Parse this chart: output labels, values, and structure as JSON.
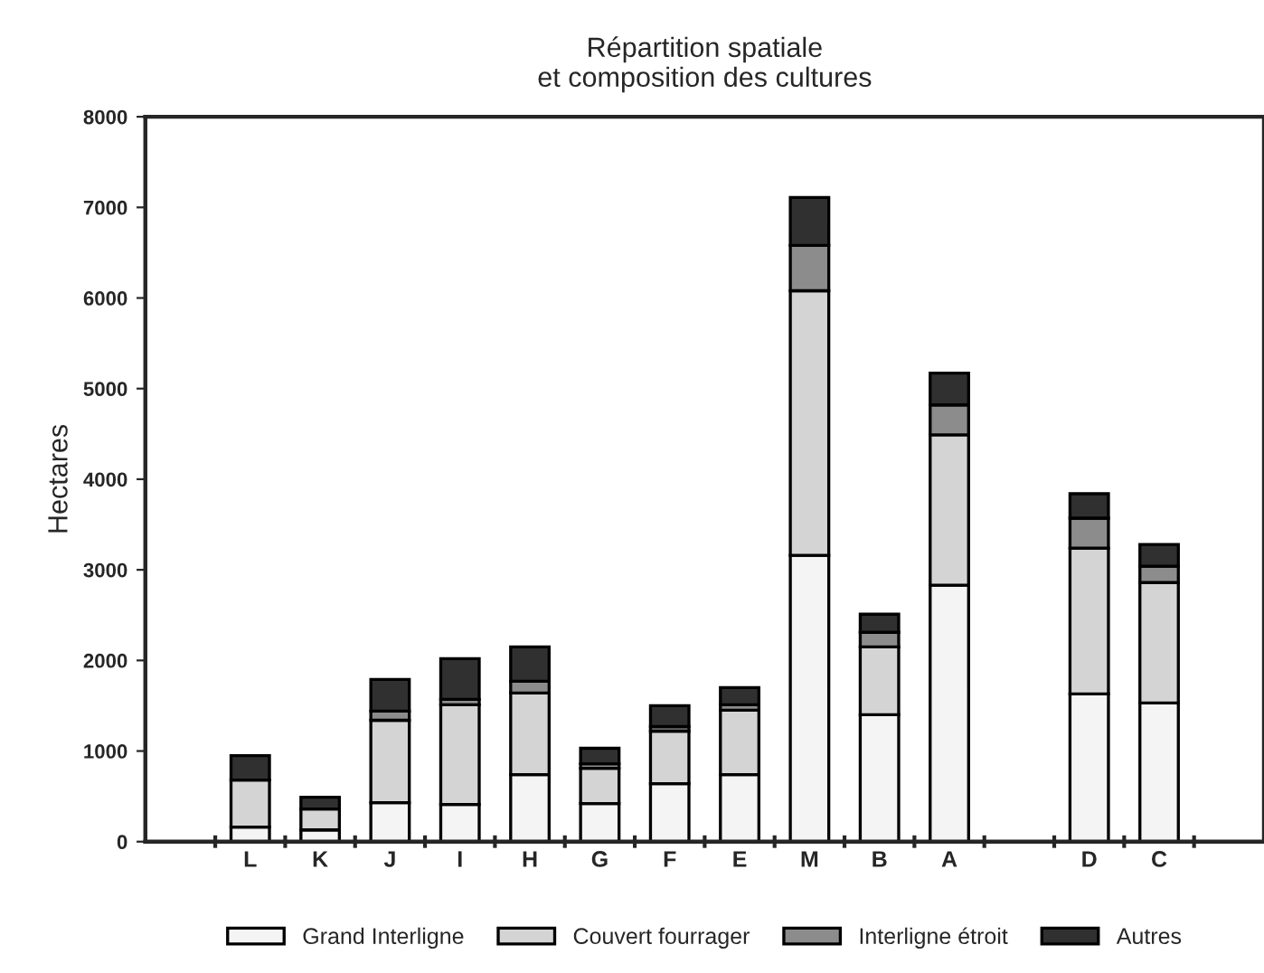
{
  "chart_data": {
    "type": "bar",
    "stacked": true,
    "title": "Répartition spatiale\net composition des cultures",
    "ylabel": "Hectares",
    "categories": [
      null,
      "L",
      "K",
      "J",
      "I",
      "H",
      "G",
      "F",
      "E",
      "M",
      "B",
      "A",
      null,
      "D",
      "C",
      null
    ],
    "series": [
      {
        "name": "Grand Interligne",
        "color": "#f4f4f4",
        "values": [
          null,
          160,
          130,
          430,
          410,
          740,
          420,
          640,
          740,
          3160,
          1400,
          2830,
          null,
          1630,
          1530,
          null
        ]
      },
      {
        "name": "Couvert fourrager",
        "color": "#d4d4d4",
        "values": [
          null,
          520,
          230,
          910,
          1100,
          900,
          390,
          580,
          710,
          2920,
          750,
          1660,
          null,
          1610,
          1330,
          null
        ]
      },
      {
        "name": "Interligne étroit",
        "color": "#8c8c8c",
        "values": [
          null,
          null,
          null,
          100,
          60,
          130,
          50,
          50,
          60,
          500,
          160,
          330,
          null,
          330,
          180,
          null
        ]
      },
      {
        "name": "Autres",
        "color": "#303030",
        "values": [
          null,
          270,
          130,
          350,
          450,
          380,
          170,
          230,
          190,
          530,
          200,
          350,
          null,
          270,
          240,
          null
        ]
      }
    ],
    "ylim": [
      0,
      8000
    ],
    "yticks": [
      0,
      1000,
      2000,
      3000,
      4000,
      5000,
      6000,
      7000,
      8000
    ],
    "grid": false,
    "legend": "bottom"
  }
}
